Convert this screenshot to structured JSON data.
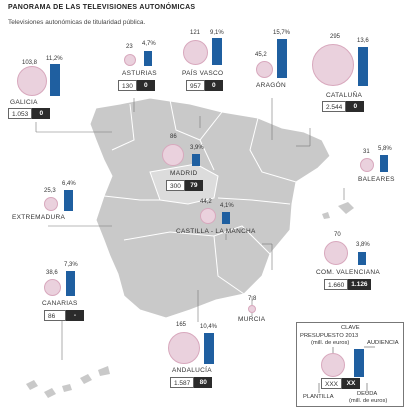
{
  "title": "PANORAMA DE LAS TELEVISIONES AUTONÓMICAS",
  "subtitle": "Televisiones autonómicas de titularidad pública.",
  "colors": {
    "land": "#c9c9c9",
    "highlight": "#dcdcdc",
    "circle": "#ead1dd",
    "bar": "#1f5fa0",
    "debt_box": "#2b2b2b"
  },
  "regions": [
    {
      "id": "galicia",
      "name": "GALICIA",
      "budget": "103,8",
      "audience": "11,2%",
      "staff": "1.053",
      "debt": "0"
    },
    {
      "id": "asturias",
      "name": "ASTURIAS",
      "budget": "23",
      "audience": "4,7%",
      "staff": "130",
      "debt": "0"
    },
    {
      "id": "pais_vasco",
      "name": "PAÍS VASCO",
      "budget": "121",
      "audience": "9,1%",
      "staff": "957",
      "debt": "0"
    },
    {
      "id": "aragon",
      "name": "ARAGÓN",
      "budget": "45,2",
      "audience": "15,7%"
    },
    {
      "id": "cataluna",
      "name": "CATALUÑA",
      "budget": "295",
      "audience": "13,6",
      "staff": "2.544",
      "debt": "0"
    },
    {
      "id": "madrid",
      "name": "MADRID",
      "budget": "86",
      "audience": "3,9%",
      "staff": "300",
      "debt": "79"
    },
    {
      "id": "baleares",
      "name": "BALEARES",
      "budget": "31",
      "audience": "5,8%"
    },
    {
      "id": "extremadura",
      "name": "EXTREMADURA",
      "budget": "25,3",
      "audience": "6,4%"
    },
    {
      "id": "castilla_la_mancha",
      "name": "CASTILLA - LA MANCHA",
      "budget": "44,2",
      "audience": "4,1%"
    },
    {
      "id": "valenciana",
      "name": "COM. VALENCIANA",
      "budget": "70",
      "audience": "3,8%",
      "staff": "1.660",
      "debt": "1.126"
    },
    {
      "id": "canarias",
      "name": "CANARIAS",
      "budget": "38,6",
      "audience": "7,3%",
      "staff": "86",
      "debt": "-"
    },
    {
      "id": "murcia",
      "name": "MURCIA",
      "budget": "7,8"
    },
    {
      "id": "andalucia",
      "name": "ANDALUCÍA",
      "budget": "165",
      "audience": "10,4%",
      "staff": "1.587",
      "debt": "80"
    }
  ],
  "key": {
    "title": "CLAVE",
    "budget_label": "PRESUPUESTO 2013",
    "budget_unit": "(mill. de euros)",
    "audience_label": "AUDIENCIA",
    "staff_label": "PLANTILLA",
    "debt_label": "DEUDA",
    "debt_unit": "(mill. de euros)",
    "sample_staff": "XXX",
    "sample_debt": "XX"
  }
}
